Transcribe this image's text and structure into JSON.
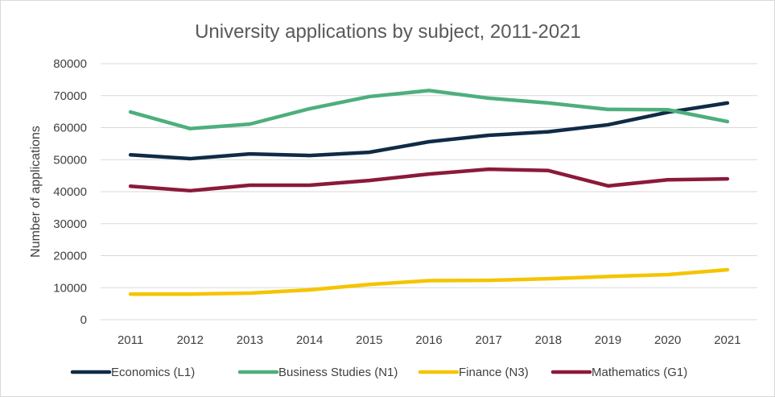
{
  "chart_data": {
    "type": "line",
    "title": "University applications by subject, 2011-2021",
    "xlabel": "",
    "ylabel": "Number of applications",
    "ylim": [
      0,
      80000
    ],
    "yticks": [
      "0",
      "10000",
      "20000",
      "30000",
      "40000",
      "50000",
      "60000",
      "70000",
      "80000"
    ],
    "categories": [
      "2011",
      "2012",
      "2013",
      "2014",
      "2015",
      "2016",
      "2017",
      "2018",
      "2019",
      "2020",
      "2021"
    ],
    "grid": "horizontal",
    "legend_position": "bottom",
    "series": [
      {
        "name": "Economics (L1)",
        "color": "#0f2b46",
        "values": [
          51500,
          50300,
          51800,
          51300,
          52300,
          55600,
          57600,
          58700,
          60900,
          64800,
          67700
        ]
      },
      {
        "name": "Business Studies (N1)",
        "color": "#4daf7c",
        "values": [
          64900,
          59700,
          61100,
          65900,
          69700,
          71600,
          69200,
          67700,
          65700,
          65600,
          61900
        ]
      },
      {
        "name": "Finance (N3)",
        "color": "#f5c400",
        "values": [
          8000,
          8000,
          8300,
          9300,
          11000,
          12200,
          12300,
          12800,
          13500,
          14100,
          15600
        ]
      },
      {
        "name": "Mathematics (G1)",
        "color": "#8b1a3a",
        "values": [
          41700,
          40300,
          42000,
          42000,
          43500,
          45500,
          47000,
          46600,
          41800,
          43700,
          44000
        ]
      }
    ]
  }
}
